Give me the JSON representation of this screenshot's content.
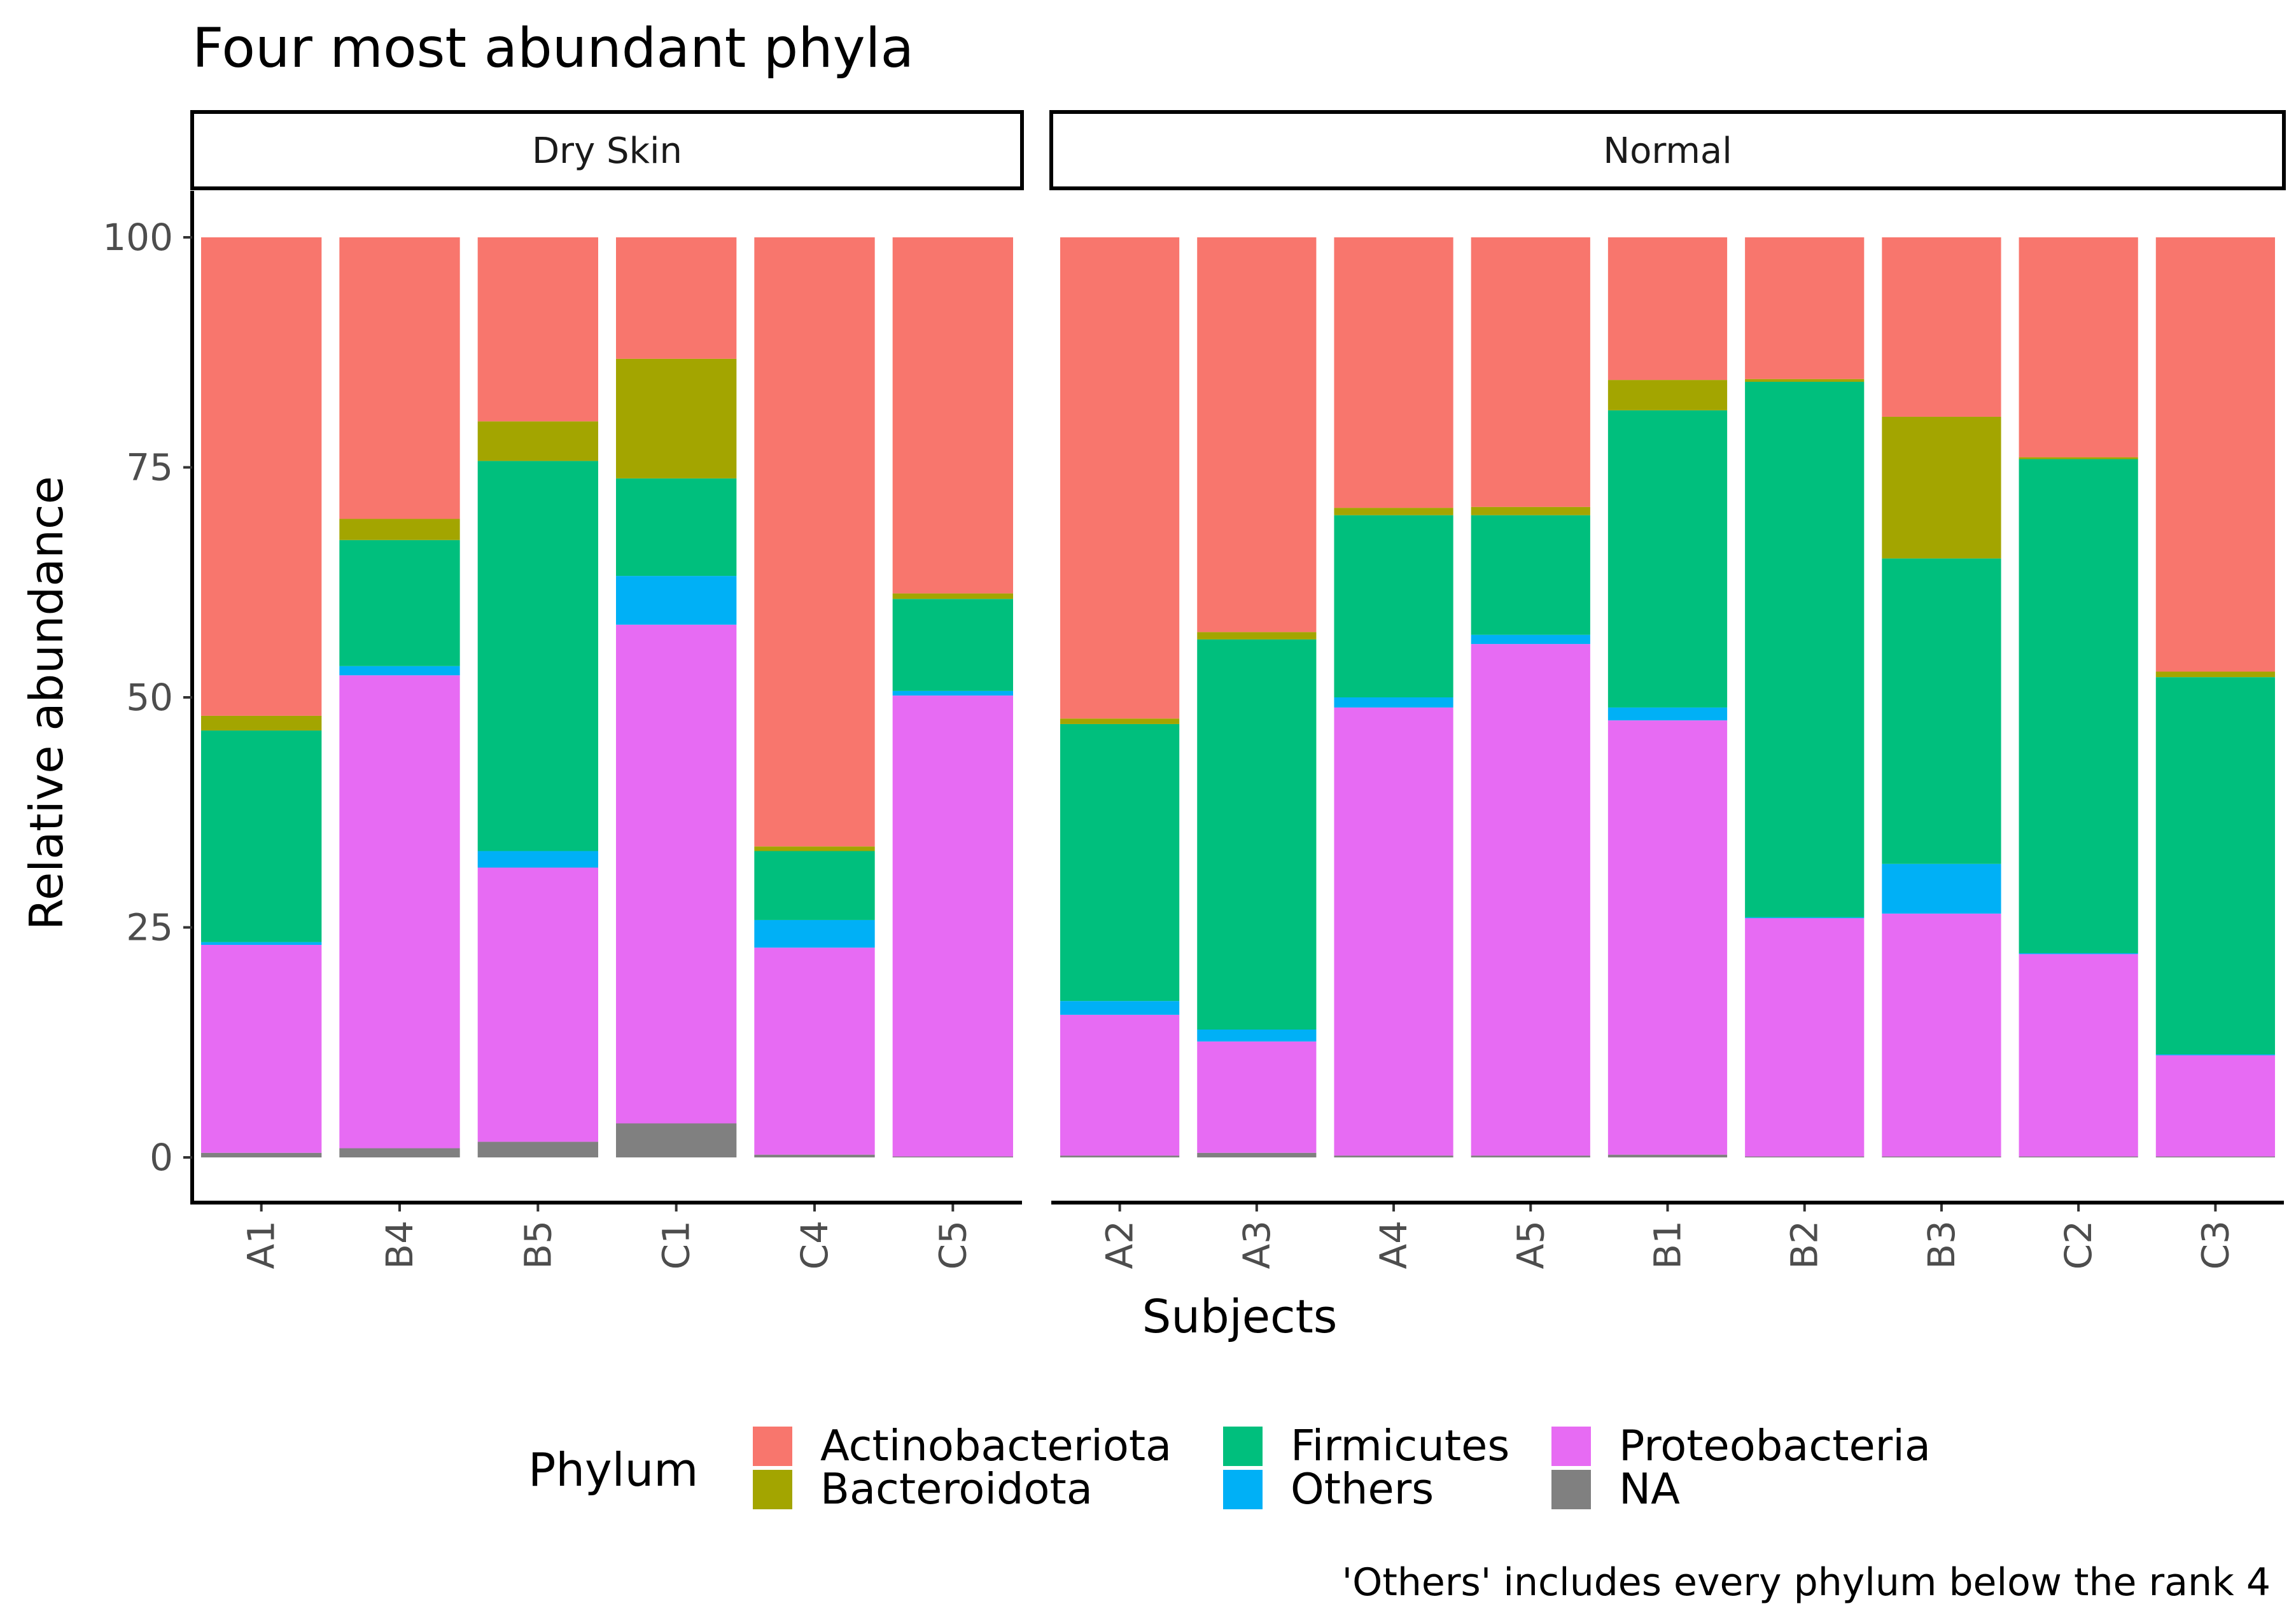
{
  "chart_data": {
    "type": "bar",
    "stacked": true,
    "title": "Four most abundant phyla",
    "xlabel": "Subjects",
    "ylabel": "Relative abundance",
    "ylim": [
      0,
      100
    ],
    "y_ticks": [
      0,
      25,
      50,
      75,
      100
    ],
    "caption": "'Others' includes every phylum below the rank 4",
    "legend": {
      "title": "Phylum",
      "position": "bottom",
      "entries": [
        {
          "name": "Actinobacteriota",
          "color": "#F8766D"
        },
        {
          "name": "Bacteroidota",
          "color": "#A3A500"
        },
        {
          "name": "Firmicutes",
          "color": "#00BF7D"
        },
        {
          "name": "Others",
          "color": "#00B0F6"
        },
        {
          "name": "Proteobacteria",
          "color": "#E76BF3"
        },
        {
          "name": "NA",
          "color": "#808080"
        }
      ]
    },
    "stack_order_bottom_to_top": [
      "NA",
      "Proteobacteria",
      "Others",
      "Firmicutes",
      "Bacteroidota",
      "Actinobacteriota"
    ],
    "facets": [
      {
        "label": "Dry Skin",
        "categories": [
          "A1",
          "B4",
          "B5",
          "C1",
          "C4",
          "C5"
        ],
        "series": [
          {
            "name": "NA",
            "values": [
              0.5,
              1.0,
              1.7,
              3.7,
              0.3,
              0.1
            ]
          },
          {
            "name": "Proteobacteria",
            "values": [
              22.6,
              51.4,
              29.8,
              54.2,
              22.5,
              50.1
            ]
          },
          {
            "name": "Others",
            "values": [
              0.3,
              1.0,
              1.8,
              5.3,
              3.0,
              0.5
            ]
          },
          {
            "name": "Firmicutes",
            "values": [
              23.0,
              13.7,
              42.4,
              10.6,
              7.5,
              10.0
            ]
          },
          {
            "name": "Bacteroidota",
            "values": [
              1.6,
              2.3,
              4.3,
              13.0,
              0.5,
              0.6
            ]
          },
          {
            "name": "Actinobacteriota",
            "values": [
              52.0,
              30.6,
              20.0,
              13.2,
              66.2,
              38.7
            ]
          }
        ]
      },
      {
        "label": "Normal",
        "categories": [
          "A2",
          "A3",
          "A4",
          "A5",
          "B1",
          "B2",
          "B3",
          "C2",
          "C3"
        ],
        "series": [
          {
            "name": "NA",
            "values": [
              0.2,
              0.5,
              0.2,
              0.2,
              0.3,
              0.1,
              0.1,
              0.1,
              0.1
            ]
          },
          {
            "name": "Proteobacteria",
            "values": [
              15.3,
              12.1,
              48.7,
              55.6,
              47.2,
              25.9,
              26.4,
              22.0,
              11.0
            ]
          },
          {
            "name": "Others",
            "values": [
              1.5,
              1.3,
              1.1,
              1.0,
              1.4,
              0.1,
              5.4,
              0.1,
              0.1
            ]
          },
          {
            "name": "Firmicutes",
            "values": [
              30.1,
              42.4,
              19.8,
              13.0,
              32.3,
              58.2,
              33.2,
              53.7,
              41.0
            ]
          },
          {
            "name": "Bacteroidota",
            "values": [
              0.6,
              0.8,
              0.8,
              0.9,
              3.3,
              0.3,
              15.4,
              0.2,
              0.6
            ]
          },
          {
            "name": "Actinobacteriota",
            "values": [
              52.3,
              42.9,
              29.4,
              29.3,
              15.5,
              15.4,
              19.5,
              23.9,
              47.2
            ]
          }
        ]
      }
    ]
  }
}
